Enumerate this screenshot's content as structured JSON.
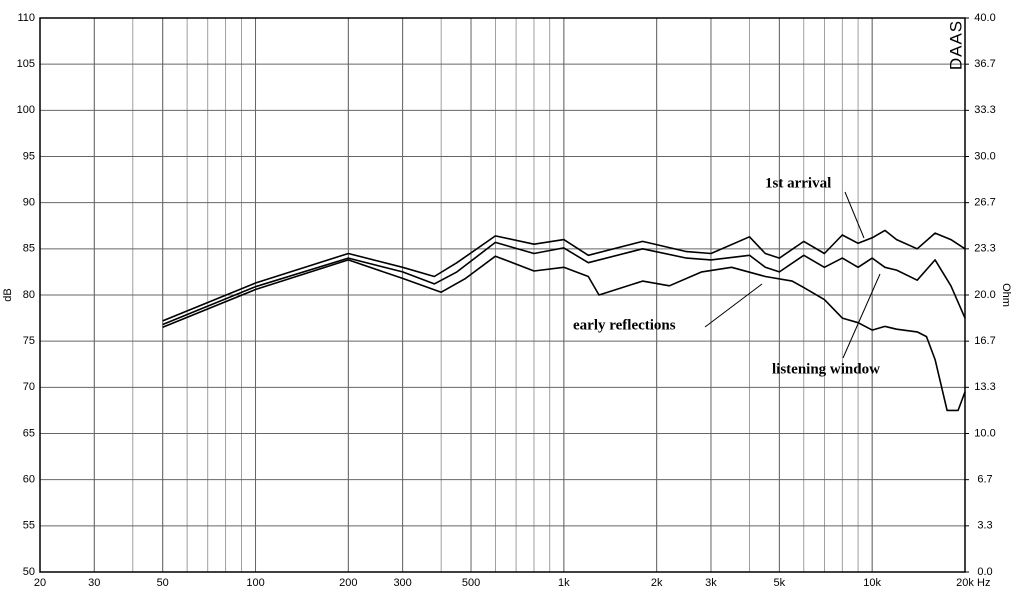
{
  "chart_data": {
    "type": "line",
    "log_x": true,
    "grid": true,
    "color_bg": "#ffffff",
    "xlim": [
      20,
      20000
    ],
    "ylim": [
      50,
      110
    ],
    "y2lim": [
      0,
      40
    ],
    "xticks": [
      20,
      30,
      50,
      100,
      200,
      300,
      500,
      {
        "value": 1000,
        "label": "1k"
      },
      {
        "value": 2000,
        "label": "2k"
      },
      {
        "value": 3000,
        "label": "3k"
      },
      {
        "value": 5000,
        "label": "5k"
      },
      {
        "value": 10000,
        "label": "10k"
      },
      {
        "value": 20000,
        "label": "20k"
      }
    ],
    "yticks": [
      50,
      55,
      60,
      65,
      70,
      75,
      80,
      85,
      90,
      95,
      100,
      105,
      110
    ],
    "y2ticks": [
      {
        "value": 0,
        "label": "0.0"
      },
      {
        "value": 3.333,
        "label": "3.3"
      },
      {
        "value": 6.667,
        "label": "6.7"
      },
      {
        "value": 10,
        "label": "10.0"
      },
      {
        "value": 13.333,
        "label": "13.3"
      },
      {
        "value": 16.667,
        "label": "16.7"
      },
      {
        "value": 20,
        "label": "20.0"
      },
      {
        "value": 23.333,
        "label": "23.3"
      },
      {
        "value": 26.667,
        "label": "26.7"
      },
      {
        "value": 30,
        "label": "30.0"
      },
      {
        "value": 33.333,
        "label": "33.3"
      },
      {
        "value": 36.667,
        "label": "36.7"
      },
      {
        "value": 40,
        "label": "40.0"
      }
    ],
    "xlabel": "Hz",
    "ylabel": "dB",
    "y2label": "Ohm",
    "brand": "DAAS",
    "series": [
      {
        "name": "1st arrival",
        "color": "#000000",
        "x": [
          50,
          100,
          200,
          300,
          380,
          450,
          600,
          800,
          1000,
          1200,
          1800,
          2500,
          3000,
          4000,
          4500,
          5000,
          6000,
          7000,
          8000,
          9000,
          10000,
          11000,
          12000,
          14000,
          16000,
          18000,
          20000
        ],
        "values": [
          77.2,
          81.3,
          84.5,
          83,
          82,
          83.5,
          86.4,
          85.5,
          86,
          84.3,
          85.8,
          84.7,
          84.5,
          86.3,
          84.5,
          84,
          85.8,
          84.5,
          86.5,
          85.6,
          86.2,
          87,
          86,
          85,
          86.7,
          86,
          85
        ]
      },
      {
        "name": "listening window",
        "color": "#000000",
        "x": [
          50,
          100,
          200,
          300,
          380,
          450,
          600,
          800,
          1000,
          1200,
          1800,
          2500,
          3000,
          4000,
          4500,
          5000,
          6000,
          7000,
          8000,
          9000,
          10000,
          11000,
          12000,
          14000,
          16000,
          18000,
          20000
        ],
        "values": [
          76.8,
          80.9,
          84,
          82.5,
          81.2,
          82.5,
          85.7,
          84.5,
          85.1,
          83.5,
          85,
          84,
          83.8,
          84.3,
          83,
          82.5,
          84.3,
          83,
          84,
          83,
          84,
          83,
          82.7,
          81.6,
          83.8,
          81,
          77.5
        ]
      },
      {
        "name": "early reflections",
        "color": "#000000",
        "x": [
          50,
          100,
          200,
          300,
          400,
          480,
          600,
          800,
          1000,
          1200,
          1300,
          1800,
          2200,
          2800,
          3500,
          4500,
          5500,
          6000,
          7000,
          8000,
          9000,
          10000,
          11000,
          12000,
          14000,
          15000,
          16000,
          17500,
          19000,
          20000
        ],
        "values": [
          76.5,
          80.6,
          83.8,
          81.8,
          80.3,
          81.8,
          84.2,
          82.6,
          83,
          82,
          80,
          81.5,
          81,
          82.5,
          83,
          82,
          81.5,
          80.8,
          79.5,
          77.5,
          77,
          76.2,
          76.6,
          76.3,
          76,
          75.5,
          73,
          67.5,
          67.5,
          69.5
        ]
      }
    ]
  }
}
